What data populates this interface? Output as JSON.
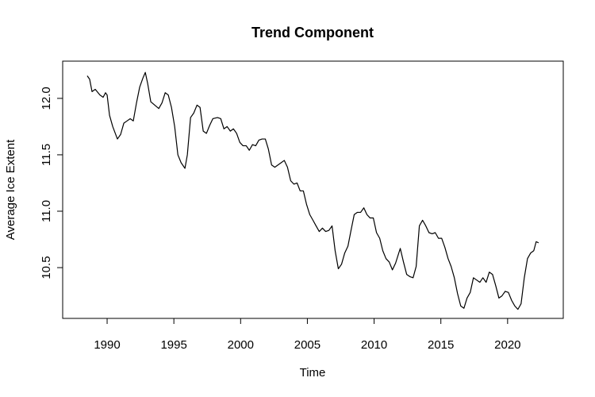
{
  "chart_data": {
    "type": "line",
    "title": "Trend Component",
    "x_label": "Time",
    "y_label": "Average Ice Extent",
    "color": "#000000",
    "xlim": [
      1986.67,
      2024.17
    ],
    "ylim": [
      10.05,
      12.33
    ],
    "xticks": [
      1990,
      1995,
      2000,
      2005,
      2010,
      2015,
      2020
    ],
    "yticks": [
      {
        "value": 10.5,
        "label": "10.5"
      },
      {
        "value": 11,
        "label": "11.0"
      },
      11.5,
      {
        "value": 12,
        "label": "12.0"
      }
    ],
    "x": [
      1988.51,
      1988.69,
      1988.87,
      1989.11,
      1989.46,
      1989.7,
      1989.88,
      1990.0,
      1990.18,
      1990.42,
      1990.77,
      1991.01,
      1991.25,
      1991.49,
      1991.73,
      1991.96,
      1992.2,
      1992.44,
      1992.68,
      1992.86,
      1993.04,
      1993.27,
      1993.57,
      1993.87,
      1994.11,
      1994.35,
      1994.58,
      1994.82,
      1995.06,
      1995.3,
      1995.54,
      1995.83,
      1996.01,
      1996.25,
      1996.49,
      1996.73,
      1996.96,
      1997.2,
      1997.44,
      1997.68,
      1997.92,
      1998.27,
      1998.51,
      1998.75,
      1998.99,
      1999.23,
      1999.46,
      1999.7,
      1999.94,
      2000.18,
      2000.42,
      2000.65,
      2000.89,
      2001.13,
      2001.37,
      2001.61,
      2001.85,
      2002.08,
      2002.32,
      2002.56,
      2002.8,
      2003.04,
      2003.27,
      2003.51,
      2003.75,
      2003.99,
      2004.23,
      2004.46,
      2004.7,
      2004.94,
      2005.18,
      2005.42,
      2005.65,
      2005.89,
      2006.13,
      2006.37,
      2006.61,
      2006.85,
      2007.08,
      2007.32,
      2007.56,
      2007.8,
      2008.04,
      2008.27,
      2008.51,
      2008.75,
      2008.99,
      2009.23,
      2009.46,
      2009.7,
      2009.94,
      2010.18,
      2010.42,
      2010.65,
      2010.89,
      2011.13,
      2011.37,
      2011.61,
      2011.85,
      2011.96,
      2012.2,
      2012.44,
      2012.68,
      2012.92,
      2013.15,
      2013.39,
      2013.63,
      2013.87,
      2014.11,
      2014.35,
      2014.58,
      2014.82,
      2015.06,
      2015.3,
      2015.54,
      2015.77,
      2016.01,
      2016.25,
      2016.49,
      2016.73,
      2016.96,
      2017.2,
      2017.44,
      2017.68,
      2017.92,
      2018.15,
      2018.39,
      2018.63,
      2018.87,
      2019.11,
      2019.35,
      2019.58,
      2019.82,
      2020.06,
      2020.3,
      2020.54,
      2020.77,
      2021.01,
      2021.25,
      2021.49,
      2021.73,
      2021.96,
      2022.14,
      2022.32
    ],
    "values": [
      12.2,
      12.17,
      12.06,
      12.08,
      12.03,
      12.01,
      12.05,
      12.03,
      11.85,
      11.75,
      11.64,
      11.68,
      11.78,
      11.8,
      11.82,
      11.8,
      11.96,
      12.1,
      12.18,
      12.23,
      12.13,
      11.97,
      11.94,
      11.91,
      11.96,
      12.05,
      12.03,
      11.92,
      11.75,
      11.5,
      11.43,
      11.38,
      11.5,
      11.83,
      11.87,
      11.94,
      11.92,
      11.71,
      11.69,
      11.76,
      11.82,
      11.83,
      11.82,
      11.73,
      11.75,
      11.71,
      11.73,
      11.69,
      11.61,
      11.58,
      11.58,
      11.54,
      11.59,
      11.58,
      11.63,
      11.64,
      11.64,
      11.55,
      11.41,
      11.39,
      11.41,
      11.43,
      11.45,
      11.39,
      11.27,
      11.24,
      11.25,
      11.18,
      11.18,
      11.06,
      10.97,
      10.92,
      10.87,
      10.82,
      10.85,
      10.82,
      10.83,
      10.87,
      10.65,
      10.49,
      10.53,
      10.63,
      10.69,
      10.83,
      10.97,
      10.99,
      10.99,
      11.03,
      10.97,
      10.94,
      10.94,
      10.81,
      10.76,
      10.65,
      10.58,
      10.55,
      10.48,
      10.54,
      10.63,
      10.67,
      10.55,
      10.44,
      10.42,
      10.41,
      10.51,
      10.87,
      10.92,
      10.87,
      10.81,
      10.8,
      10.81,
      10.76,
      10.76,
      10.68,
      10.58,
      10.51,
      10.41,
      10.27,
      10.16,
      10.14,
      10.23,
      10.28,
      10.41,
      10.39,
      10.37,
      10.41,
      10.37,
      10.46,
      10.44,
      10.34,
      10.23,
      10.25,
      10.29,
      10.28,
      10.21,
      10.16,
      10.13,
      10.18,
      10.41,
      10.58,
      10.63,
      10.65,
      10.73,
      10.72
    ]
  }
}
